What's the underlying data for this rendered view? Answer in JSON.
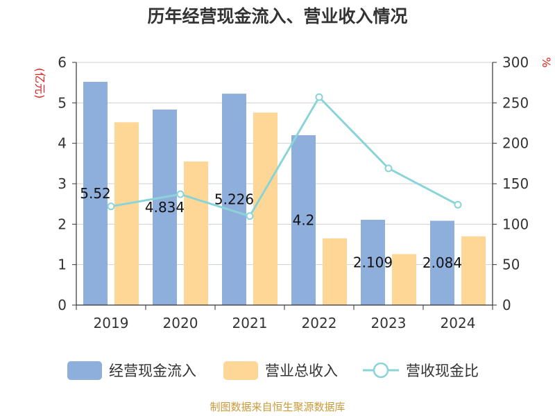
{
  "chart_data": {
    "type": "bar",
    "title": "历年经营现金流入、营业收入情况",
    "categories": [
      "2019",
      "2020",
      "2021",
      "2022",
      "2023",
      "2024"
    ],
    "y_left": {
      "unit_label": "(亿元)",
      "range": [
        0,
        6
      ],
      "ticks": [
        "0",
        "1",
        "2",
        "3",
        "4",
        "5",
        "6"
      ]
    },
    "y_right": {
      "unit_label": "%",
      "range": [
        0,
        300
      ],
      "ticks": [
        "0",
        "50",
        "100",
        "150",
        "200",
        "250",
        "300"
      ]
    },
    "series": [
      {
        "name": "经营现金流入",
        "kind": "bar",
        "axis": "left",
        "color": "#8eaedb",
        "values": [
          5.52,
          4.834,
          5.226,
          4.2,
          2.109,
          2.084
        ],
        "labels": [
          "5.52",
          "4.834",
          "5.226",
          "4.2",
          "2.109",
          "2.084"
        ]
      },
      {
        "name": "营业总收入",
        "kind": "bar",
        "axis": "left",
        "color": "#fed797",
        "values": [
          4.52,
          3.55,
          4.76,
          1.65,
          1.26,
          1.7
        ]
      },
      {
        "name": "营收现金比",
        "kind": "line",
        "axis": "right",
        "color": "#8ad4d7",
        "values": [
          122,
          137,
          110,
          257,
          169,
          124
        ]
      }
    ],
    "grid": true,
    "legend_position": "bottom"
  },
  "source_text": "制图数据来自恒生聚源数据库"
}
